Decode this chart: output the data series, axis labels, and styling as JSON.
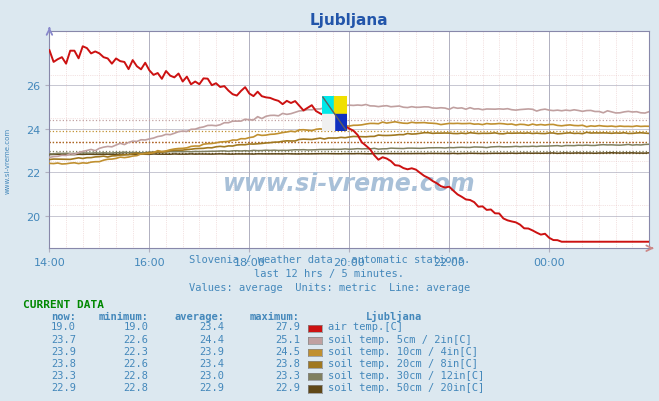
{
  "title": "Ljubljana",
  "subtitle1": "Slovenia / weather data - automatic stations.",
  "subtitle2": "last 12 hrs / 5 minutes.",
  "subtitle3": "Values: average  Units: metric  Line: average",
  "bg_color": "#dce8f0",
  "plot_bg_color": "#ffffff",
  "title_color": "#2255aa",
  "text_color": "#4488bb",
  "grid_color_major": "#b0b0c0",
  "grid_color_minor_v": "#e8c8c8",
  "grid_color_minor_h": "#e8c8c8",
  "axis_color": "#8888aa",
  "xlim": [
    0,
    144
  ],
  "ylim": [
    18.5,
    28.5
  ],
  "yticks": [
    20,
    22,
    24,
    26
  ],
  "xtick_labels": [
    "14:00",
    "16:00",
    "18:00",
    "20:00",
    "22:00",
    "00:00"
  ],
  "xtick_positions": [
    0,
    24,
    48,
    72,
    96,
    120
  ],
  "watermark": "www.si-vreme.com",
  "watermark_color": "#a8c0d8",
  "series_colors": {
    "air_temp": "#cc1111",
    "soil_5cm": "#c0a0a0",
    "soil_10cm": "#c09030",
    "soil_20cm": "#a07820",
    "soil_30cm": "#808060",
    "soil_50cm": "#604818"
  },
  "series_avgs": {
    "air_temp": 23.4,
    "soil_5cm": 24.4,
    "soil_10cm": 23.9,
    "soil_20cm": 23.4,
    "soil_30cm": 23.0,
    "soil_50cm": 22.9
  },
  "current_data_header": "CURRENT DATA",
  "table_columns": [
    "now:",
    "minimum:",
    "average:",
    "maximum:",
    "Ljubljana"
  ],
  "table_header_color": "#4488bb",
  "current_data_color": "#008800",
  "table_data": [
    [
      19.0,
      19.0,
      23.4,
      27.9
    ],
    [
      23.7,
      22.6,
      24.4,
      25.1
    ],
    [
      23.9,
      22.3,
      23.9,
      24.5
    ],
    [
      23.8,
      22.6,
      23.4,
      23.8
    ],
    [
      23.3,
      22.8,
      23.0,
      23.3
    ],
    [
      22.9,
      22.8,
      22.9,
      22.9
    ]
  ],
  "swatch_colors": [
    "#cc1111",
    "#c0a0a0",
    "#c09030",
    "#a07820",
    "#808060",
    "#604818"
  ],
  "row_labels": [
    "air temp.[C]",
    "soil temp. 5cm / 2in[C]",
    "soil temp. 10cm / 4in[C]",
    "soil temp. 20cm / 8in[C]",
    "soil temp. 30cm / 12in[C]",
    "soil temp. 50cm / 20in[C]"
  ]
}
